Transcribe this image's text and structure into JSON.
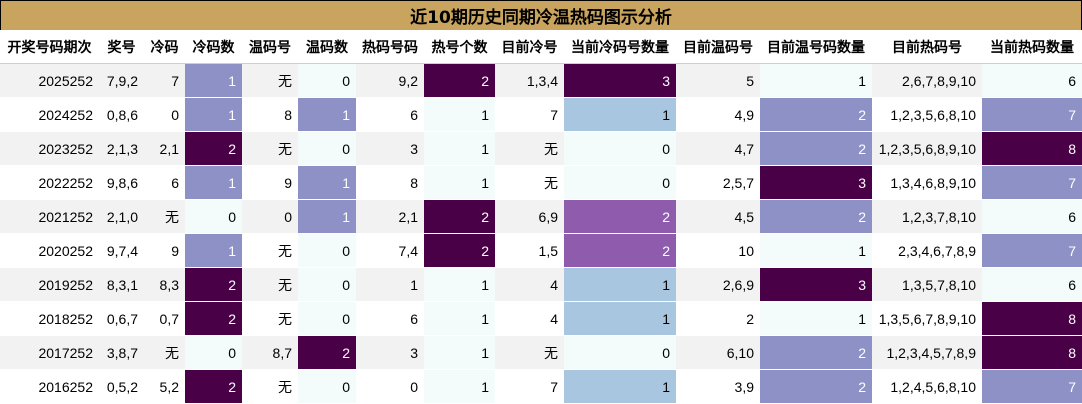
{
  "title": "近10期历史同期冷温热码图示分析",
  "headers": [
    "开奖号码期次",
    "奖号",
    "冷码",
    "冷码数",
    "温码号",
    "温码数",
    "热码号码",
    "热号个数",
    "目前冷号",
    "当前冷码号数量",
    "目前温码号",
    "目前温号码数量",
    "目前热码号",
    "当前热码数量"
  ],
  "rows": [
    {
      "period": "2025252",
      "draw": "7,9,2",
      "cold": "7",
      "cold_count": "1",
      "warm": "无",
      "warm_count": "0",
      "hot": "9,2",
      "hot_count": "2",
      "cur_cold": "1,3,4",
      "cur_cold_count": "3",
      "cur_warm": "5",
      "cur_warm_count": "1",
      "cur_hot": "2,6,7,8,9,10",
      "cur_hot_count": "6"
    },
    {
      "period": "2024252",
      "draw": "0,8,6",
      "cold": "0",
      "cold_count": "1",
      "warm": "8",
      "warm_count": "1",
      "hot": "6",
      "hot_count": "1",
      "cur_cold": "7",
      "cur_cold_count": "1",
      "cur_warm": "4,9",
      "cur_warm_count": "2",
      "cur_hot": "1,2,3,5,6,8,10",
      "cur_hot_count": "7"
    },
    {
      "period": "2023252",
      "draw": "2,1,3",
      "cold": "2,1",
      "cold_count": "2",
      "warm": "无",
      "warm_count": "0",
      "hot": "3",
      "hot_count": "1",
      "cur_cold": "无",
      "cur_cold_count": "0",
      "cur_warm": "4,7",
      "cur_warm_count": "2",
      "cur_hot": "1,2,3,5,6,8,9,10",
      "cur_hot_count": "8"
    },
    {
      "period": "2022252",
      "draw": "9,8,6",
      "cold": "6",
      "cold_count": "1",
      "warm": "9",
      "warm_count": "1",
      "hot": "8",
      "hot_count": "1",
      "cur_cold": "无",
      "cur_cold_count": "0",
      "cur_warm": "2,5,7",
      "cur_warm_count": "3",
      "cur_hot": "1,3,4,6,8,9,10",
      "cur_hot_count": "7"
    },
    {
      "period": "2021252",
      "draw": "2,1,0",
      "cold": "无",
      "cold_count": "0",
      "warm": "0",
      "warm_count": "1",
      "hot": "2,1",
      "hot_count": "2",
      "cur_cold": "6,9",
      "cur_cold_count": "2",
      "cur_warm": "4,5",
      "cur_warm_count": "2",
      "cur_hot": "1,2,3,7,8,10",
      "cur_hot_count": "6"
    },
    {
      "period": "2020252",
      "draw": "9,7,4",
      "cold": "9",
      "cold_count": "1",
      "warm": "无",
      "warm_count": "0",
      "hot": "7,4",
      "hot_count": "2",
      "cur_cold": "1,5",
      "cur_cold_count": "2",
      "cur_warm": "10",
      "cur_warm_count": "1",
      "cur_hot": "2,3,4,6,7,8,9",
      "cur_hot_count": "7"
    },
    {
      "period": "2019252",
      "draw": "8,3,1",
      "cold": "8,3",
      "cold_count": "2",
      "warm": "无",
      "warm_count": "0",
      "hot": "1",
      "hot_count": "1",
      "cur_cold": "4",
      "cur_cold_count": "1",
      "cur_warm": "2,6,9",
      "cur_warm_count": "3",
      "cur_hot": "1,3,5,7,8,10",
      "cur_hot_count": "6"
    },
    {
      "period": "2018252",
      "draw": "0,6,7",
      "cold": "0,7",
      "cold_count": "2",
      "warm": "无",
      "warm_count": "0",
      "hot": "6",
      "hot_count": "1",
      "cur_cold": "4",
      "cur_cold_count": "1",
      "cur_warm": "2",
      "cur_warm_count": "1",
      "cur_hot": "1,3,5,6,7,8,9,10",
      "cur_hot_count": "8"
    },
    {
      "period": "2017252",
      "draw": "3,8,7",
      "cold": "无",
      "cold_count": "0",
      "warm": "8,7",
      "warm_count": "2",
      "hot": "3",
      "hot_count": "1",
      "cur_cold": "无",
      "cur_cold_count": "0",
      "cur_warm": "6,10",
      "cur_warm_count": "2",
      "cur_hot": "1,2,3,4,5,7,8,9",
      "cur_hot_count": "8"
    },
    {
      "period": "2016252",
      "draw": "0,5,2",
      "cold": "5,2",
      "cold_count": "2",
      "warm": "无",
      "warm_count": "0",
      "hot": "0",
      "hot_count": "1",
      "cur_cold": "7",
      "cur_cold_count": "1",
      "cur_warm": "3,9",
      "cur_warm_count": "2",
      "cur_hot": "1,2,4,5,6,8,10",
      "cur_hot_count": "7"
    }
  ],
  "colors": {
    "title_bg": "#c9a45f",
    "dark_purple": "#4a0047",
    "medium_violet": "#8e91c5",
    "purple": "#8f5cad",
    "light_blue": "#a8c6df",
    "empty_cell": "#f3fbfb",
    "stripe": "#f2f2f2"
  }
}
